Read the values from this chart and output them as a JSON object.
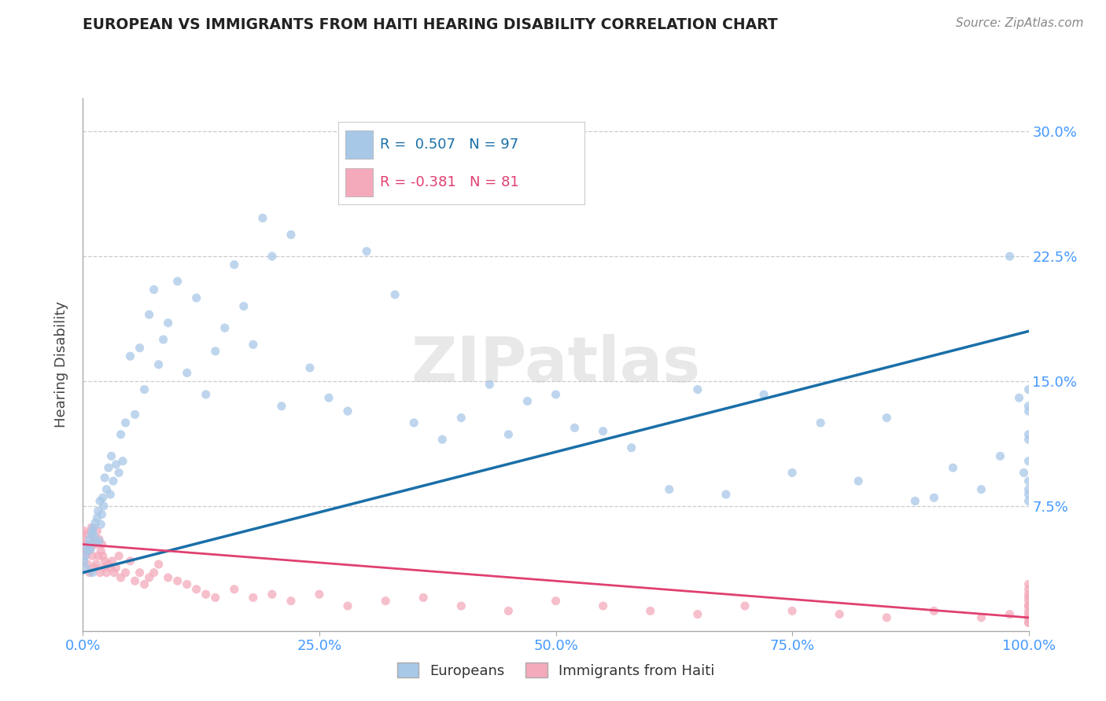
{
  "title": "EUROPEAN VS IMMIGRANTS FROM HAITI HEARING DISABILITY CORRELATION CHART",
  "source": "Source: ZipAtlas.com",
  "ylabel": "Hearing Disability",
  "xlim": [
    0,
    100
  ],
  "ylim": [
    0,
    32
  ],
  "yticks": [
    0,
    7.5,
    15.0,
    22.5,
    30.0
  ],
  "xticks": [
    0,
    25,
    50,
    75,
    100
  ],
  "xtick_labels": [
    "0.0%",
    "25.0%",
    "50.0%",
    "75.0%",
    "100.0%"
  ],
  "ytick_labels_right": [
    "",
    "7.5%",
    "15.0%",
    "22.5%",
    "30.0%"
  ],
  "blue_R": "0.507",
  "blue_N": "97",
  "pink_R": "-0.381",
  "pink_N": "81",
  "blue_scatter_color": "#A8C8E8",
  "pink_scatter_color": "#F4AABB",
  "blue_line_color": "#1A6FA8",
  "pink_line_color": "#E04070",
  "grid_color": "#CCCCCC",
  "axis_color": "#AAAAAA",
  "tick_label_color": "#4499FF",
  "title_color": "#222222",
  "source_color": "#888888",
  "legend_blue_label": "Europeans",
  "legend_pink_label": "Immigrants from Haiti",
  "watermark": "ZIPatlas",
  "watermark_color": "#DDDDDD",
  "blue_x": [
    0.1,
    0.2,
    0.3,
    0.4,
    0.5,
    0.6,
    0.7,
    0.8,
    0.9,
    1.0,
    1.0,
    1.1,
    1.2,
    1.3,
    1.4,
    1.5,
    1.6,
    1.7,
    1.8,
    1.9,
    2.0,
    2.1,
    2.2,
    2.3,
    2.5,
    2.7,
    2.9,
    3.0,
    3.2,
    3.5,
    3.8,
    4.0,
    4.2,
    4.5,
    5.0,
    5.5,
    6.0,
    6.5,
    7.0,
    7.5,
    8.0,
    8.5,
    9.0,
    10.0,
    11.0,
    12.0,
    13.0,
    14.0,
    15.0,
    16.0,
    17.0,
    18.0,
    19.0,
    20.0,
    21.0,
    22.0,
    24.0,
    26.0,
    28.0,
    30.0,
    33.0,
    35.0,
    38.0,
    40.0,
    43.0,
    45.0,
    47.0,
    50.0,
    52.0,
    55.0,
    58.0,
    62.0,
    65.0,
    68.0,
    72.0,
    75.0,
    78.0,
    82.0,
    85.0,
    88.0,
    90.0,
    92.0,
    95.0,
    97.0,
    98.0,
    99.0,
    99.5,
    100.0,
    100.0,
    100.0,
    100.0,
    100.0,
    100.0,
    100.0,
    100.0,
    100.0,
    100.0
  ],
  "blue_y": [
    4.2,
    4.5,
    3.8,
    5.0,
    4.8,
    5.2,
    5.5,
    4.9,
    5.8,
    6.0,
    3.5,
    6.2,
    5.7,
    6.5,
    5.3,
    6.8,
    7.2,
    5.4,
    7.8,
    6.4,
    7.0,
    8.0,
    7.5,
    9.2,
    8.5,
    9.8,
    8.2,
    10.5,
    9.0,
    10.0,
    9.5,
    11.8,
    10.2,
    12.5,
    16.5,
    13.0,
    17.0,
    14.5,
    19.0,
    20.5,
    16.0,
    17.5,
    18.5,
    21.0,
    15.5,
    20.0,
    14.2,
    16.8,
    18.2,
    22.0,
    19.5,
    17.2,
    24.8,
    22.5,
    13.5,
    23.8,
    15.8,
    14.0,
    13.2,
    22.8,
    20.2,
    12.5,
    11.5,
    12.8,
    14.8,
    11.8,
    13.8,
    14.2,
    12.2,
    12.0,
    11.0,
    8.5,
    14.5,
    8.2,
    14.2,
    9.5,
    12.5,
    9.0,
    12.8,
    7.8,
    8.0,
    9.8,
    8.5,
    10.5,
    22.5,
    14.0,
    9.5,
    14.5,
    13.2,
    11.8,
    8.2,
    7.8,
    9.0,
    11.5,
    8.5,
    13.5,
    10.2
  ],
  "pink_x": [
    0.05,
    0.1,
    0.15,
    0.2,
    0.3,
    0.4,
    0.5,
    0.6,
    0.7,
    0.8,
    0.9,
    1.0,
    1.1,
    1.2,
    1.3,
    1.4,
    1.5,
    1.6,
    1.7,
    1.8,
    1.9,
    2.0,
    2.1,
    2.2,
    2.3,
    2.5,
    2.7,
    2.9,
    3.1,
    3.3,
    3.5,
    3.8,
    4.0,
    4.5,
    5.0,
    5.5,
    6.0,
    6.5,
    7.0,
    7.5,
    8.0,
    9.0,
    10.0,
    11.0,
    12.0,
    13.0,
    14.0,
    16.0,
    18.0,
    20.0,
    22.0,
    25.0,
    28.0,
    32.0,
    36.0,
    40.0,
    45.0,
    50.0,
    55.0,
    60.0,
    65.0,
    70.0,
    75.0,
    80.0,
    85.0,
    90.0,
    95.0,
    98.0,
    100.0,
    100.0,
    100.0,
    100.0,
    100.0,
    100.0,
    100.0,
    100.0,
    100.0,
    100.0,
    100.0,
    100.0,
    100.0
  ],
  "pink_y": [
    5.5,
    6.0,
    4.8,
    5.2,
    4.5,
    5.8,
    4.0,
    4.8,
    3.5,
    5.0,
    6.2,
    4.5,
    5.5,
    3.8,
    5.2,
    4.0,
    6.0,
    4.5,
    5.5,
    3.5,
    4.8,
    5.2,
    4.5,
    3.8,
    4.2,
    3.5,
    4.0,
    3.8,
    4.2,
    3.5,
    3.8,
    4.5,
    3.2,
    3.5,
    4.2,
    3.0,
    3.5,
    2.8,
    3.2,
    3.5,
    4.0,
    3.2,
    3.0,
    2.8,
    2.5,
    2.2,
    2.0,
    2.5,
    2.0,
    2.2,
    1.8,
    2.2,
    1.5,
    1.8,
    2.0,
    1.5,
    1.2,
    1.8,
    1.5,
    1.2,
    1.0,
    1.5,
    1.2,
    1.0,
    0.8,
    1.2,
    0.8,
    1.0,
    0.5,
    1.5,
    1.8,
    2.2,
    1.2,
    2.0,
    2.8,
    1.5,
    0.8,
    2.5,
    1.0,
    0.5,
    0.8
  ]
}
